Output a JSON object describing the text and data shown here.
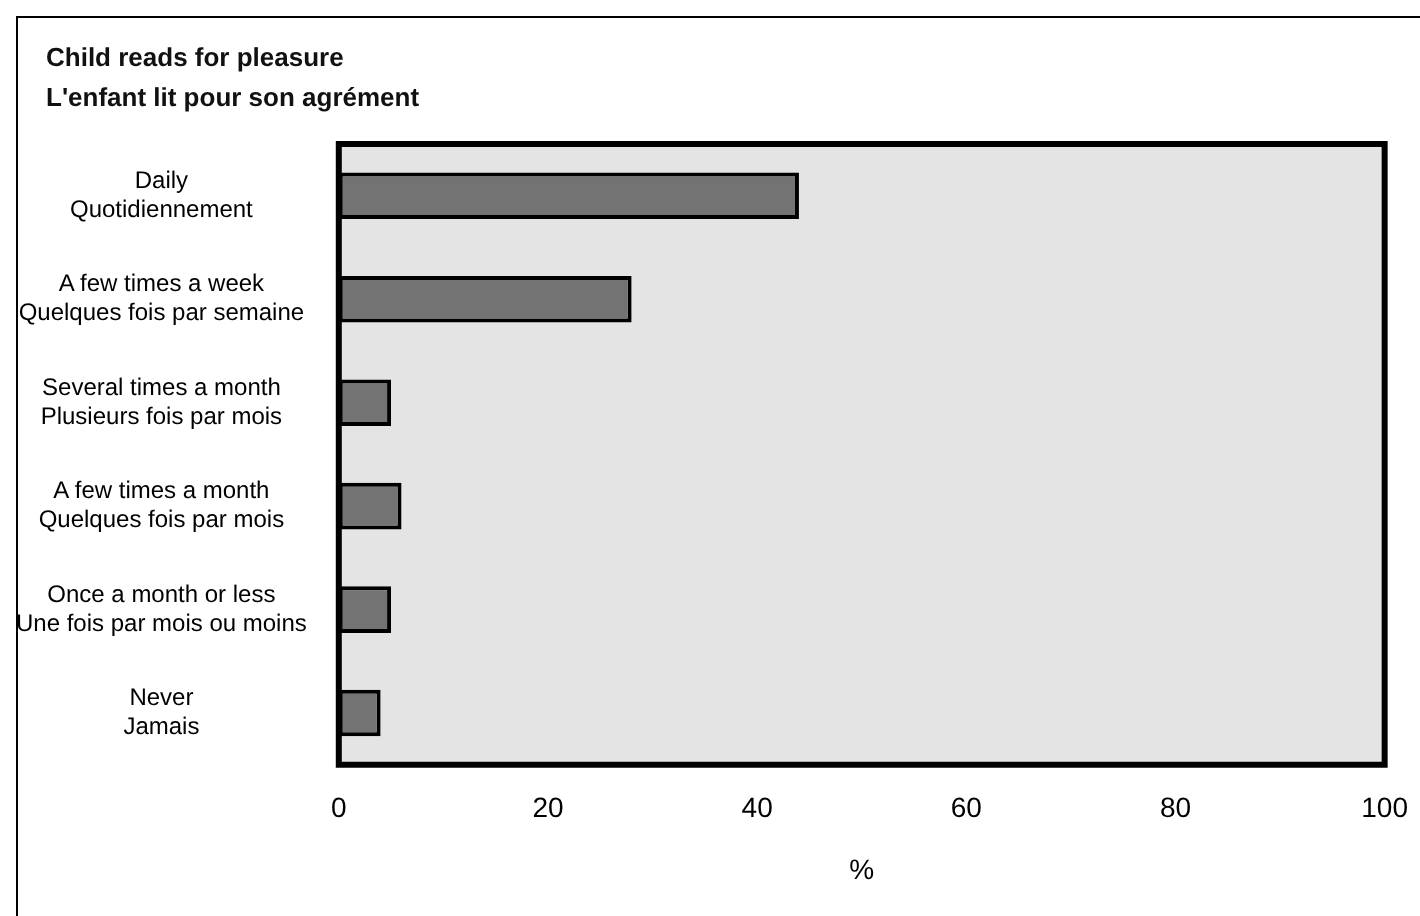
{
  "chart_data": {
    "type": "bar",
    "orientation": "horizontal",
    "title": "Child reads for pleasure",
    "subtitle": "L'enfant lit pour son agrément",
    "xlabel": "%",
    "categories": [
      "Daily\nQuotidiennement",
      "A few times a week\nQuelques fois par semaine",
      "Several times a month\nPlusieurs fois par mois",
      "A few times a month\nQuelques fois par mois",
      "Once a month or less\nUne fois par mois ou moins",
      "Never\nJamais"
    ],
    "values": [
      44,
      28,
      5,
      6,
      5,
      4
    ],
    "color": "#737373",
    "xlim": [
      0,
      100
    ],
    "xticks": [
      0,
      20,
      40,
      60,
      80,
      100
    ],
    "grid": false,
    "legend": false
  }
}
